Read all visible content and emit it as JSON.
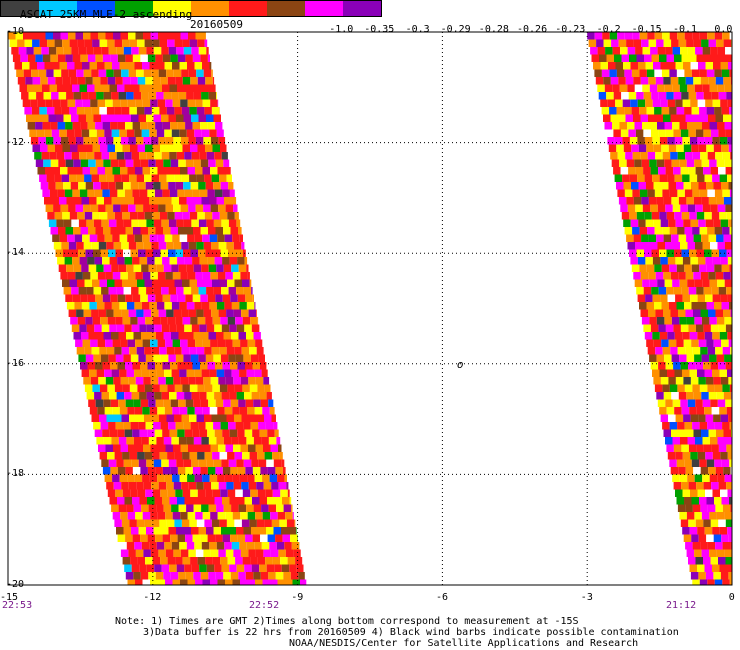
{
  "header": {
    "title": "ASCAT 25KM MLE-2 ascending",
    "date": "20160509"
  },
  "colorbar": {
    "colors": [
      "#404040",
      "#00c8ff",
      "#0050ff",
      "#00a000",
      "#ffff00",
      "#ff9000",
      "#ff1a1a",
      "#8b4513",
      "#ff00ff",
      "#8a00b8"
    ],
    "labels": [
      "-1.0",
      "-0.35",
      "-0.3",
      "-0.29",
      "-0.28",
      "-0.26",
      "-0.23",
      "-0.2",
      "-0.15",
      "-0.1",
      "0.0"
    ]
  },
  "axes": {
    "x_ticks": [
      "-15",
      "-12",
      "-9",
      "-6",
      "-3",
      "0"
    ],
    "y_ticks": [
      "-10",
      "-12",
      "-14",
      "-16",
      "-18",
      "-20"
    ],
    "x_range": [
      -15,
      0
    ],
    "y_range": [
      -20,
      -10
    ]
  },
  "times": [
    "22:53",
    "22:52",
    "21:12"
  ],
  "marker": "o",
  "notes": {
    "line1": "Note: 1) Times are GMT 2)Times along bottom correspond to measurement at -15S",
    "line2": "3)Data buffer is 22 hrs from 20160509 4) Black wind barbs indicate possible contamination",
    "credit": "NOAA/NESDIS/Center for Satellite Applications and Research"
  },
  "swaths": [
    {
      "name": "west-swath",
      "lat_top": -10,
      "lat_bottom": -20,
      "west_lon_top": -15,
      "west_lon_bottom": -12.5,
      "east_lon_top": -10.9,
      "east_lon_bottom": -8.8
    },
    {
      "name": "east-swath",
      "lat_top": -10,
      "lat_bottom": -20,
      "west_lon_top": -3.0,
      "west_lon_bottom": -0.8,
      "east_lon_top": 0,
      "east_lon_bottom": 0
    }
  ],
  "palette_weights": {
    "west": [
      [
        "#ff1a1a",
        30
      ],
      [
        "#ff9000",
        22
      ],
      [
        "#ff00ff",
        14
      ],
      [
        "#ffff00",
        10
      ],
      [
        "#8b4513",
        7
      ],
      [
        "#8a00b8",
        5
      ],
      [
        "#a000a0",
        4
      ],
      [
        "#00a000",
        3
      ],
      [
        "#0050ff",
        2
      ],
      [
        "#00c8ff",
        1
      ],
      [
        "#404040",
        1
      ],
      [
        "#ffffff",
        1
      ]
    ],
    "east": [
      [
        "#ff1a1a",
        22
      ],
      [
        "#ff9000",
        18
      ],
      [
        "#ffff00",
        16
      ],
      [
        "#ff00ff",
        18
      ],
      [
        "#8b4513",
        6
      ],
      [
        "#00a000",
        6
      ],
      [
        "#0050ff",
        3
      ],
      [
        "#8a00b8",
        6
      ],
      [
        "#404040",
        1
      ],
      [
        "#ffffff",
        2
      ]
    ]
  }
}
